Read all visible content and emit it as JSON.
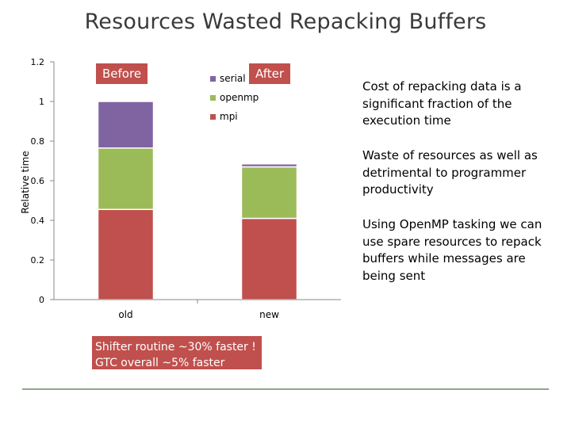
{
  "title": "Resources Wasted Repacking Buffers",
  "callouts": {
    "before": "Before",
    "after": "After"
  },
  "message": {
    "line1": "Shifter routine ~30% faster !",
    "line2": "GTC overall ~5% faster"
  },
  "bullets": [
    "Cost of repacking data is a significant fraction of the execution time",
    "Waste of resources as well as detrimental to programmer productivity",
    "Using OpenMP tasking we can use spare resources to repack buffers while messages are being sent"
  ],
  "chart_data": {
    "type": "bar",
    "stacked": true,
    "categories": [
      "old",
      "new"
    ],
    "series": [
      {
        "name": "mpi",
        "values": [
          0.455,
          0.41
        ],
        "color": "#c0504d"
      },
      {
        "name": "openmp",
        "values": [
          0.31,
          0.26
        ],
        "color": "#9bbb59"
      },
      {
        "name": "serial",
        "values": [
          0.235,
          0.015
        ],
        "color": "#8064a2"
      }
    ],
    "ylabel": "Relative time",
    "ylim": [
      0,
      1.2
    ],
    "yticks": [
      0,
      0.2,
      0.4,
      0.6,
      0.8,
      1,
      1.2
    ],
    "legend_position": "top-center",
    "grid": false
  }
}
